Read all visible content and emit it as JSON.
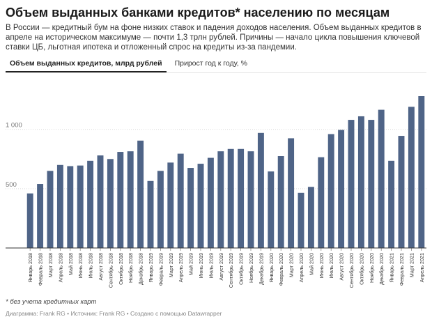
{
  "title": "Объем выданных банками кредитов* населению по месяцам",
  "description": "В России — кредитный бум на фоне низких ставок и падения доходов населения. Объем выданных кредитов в апреле на историческом максимуме — почти 1,3 трлн рублей. Причины — начало цикла повышения ключевой ставки ЦБ, льготная ипотека и отложенный спрос на кредиты из-за пандемии.",
  "tabs": [
    {
      "label": "Объем выданных кредитов, млрд рублей",
      "active": true
    },
    {
      "label": "Прирост год к году, %",
      "active": false
    }
  ],
  "footnote": "* без учета кредитных карт",
  "footer": "Диаграмма: Frank RG • Источник: Frank RG • Создано с помощью Datawrapper",
  "colors": {
    "bar": "#4f6487",
    "grid": "#d9d9d9",
    "axis": "#333333"
  },
  "chart_data": {
    "type": "bar",
    "ylim": [
      0,
      1300
    ],
    "yticks": [
      500,
      1000
    ],
    "ytick_labels": [
      "500",
      "1 000"
    ],
    "grid": true,
    "categories": [
      "Январь 2018",
      "Февраль 2018",
      "Март 2018",
      "Апрель 2018",
      "Май 2018",
      "Июнь 2018",
      "Июль 2018",
      "Август 2018",
      "Сентябрь 2018",
      "Октябрь 2018",
      "Ноябрь 2018",
      "Декабрь 2018",
      "Январь 2019",
      "Февраль 2019",
      "Март 2019",
      "Апрель 2019",
      "Май 2019",
      "Июнь 2019",
      "Июль 2019",
      "Август 2019",
      "Сентябрь 2019",
      "Октябрь 2019",
      "Ноябрь 2019",
      "Декабрь 2019",
      "Январь 2020",
      "Февраль 2020",
      "Март 2020",
      "Апрель 2020",
      "Май 2020",
      "Июнь 2020",
      "Июль 2020",
      "Август 2020",
      "Сентябрь 2020",
      "Октябрь 2020",
      "Ноябрь 2020",
      "Декабрь 2020",
      "Январь 2021",
      "Февраль 2021",
      "Март 2021",
      "Апрель 2021"
    ],
    "values": [
      460,
      540,
      650,
      700,
      690,
      695,
      735,
      780,
      750,
      810,
      815,
      905,
      565,
      650,
      720,
      795,
      675,
      710,
      760,
      815,
      835,
      835,
      815,
      970,
      645,
      775,
      925,
      465,
      515,
      765,
      960,
      995,
      1080,
      1110,
      1080,
      1165,
      735,
      945,
      1190,
      1280
    ]
  }
}
